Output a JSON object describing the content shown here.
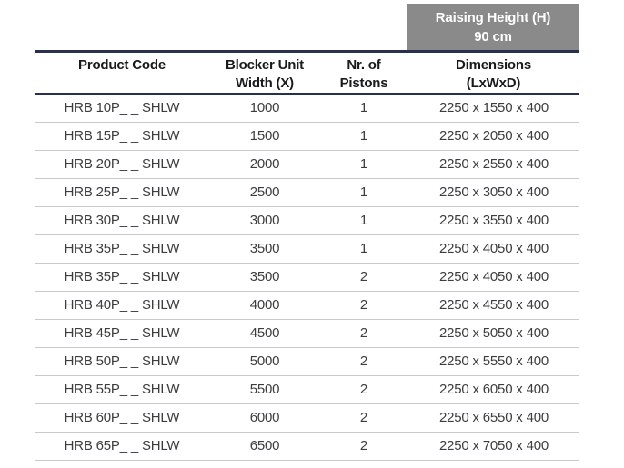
{
  "banner": {
    "line1": "Raising Height (H)",
    "line2": "90 cm"
  },
  "table": {
    "columns": [
      {
        "line1": "Product Code",
        "line2": ""
      },
      {
        "line1": "Blocker Unit",
        "line2": "Width (X)"
      },
      {
        "line1": "Nr. of",
        "line2": "Pistons"
      },
      {
        "line1": "Dimensions",
        "line2": "(LxWxD)"
      }
    ],
    "rows": [
      [
        "HRB 10P_ _ SHLW",
        "1000",
        "1",
        "2250 x 1550 x 400"
      ],
      [
        "HRB 15P_ _ SHLW",
        "1500",
        "1",
        "2250 x 2050 x 400"
      ],
      [
        "HRB 20P_ _ SHLW",
        "2000",
        "1",
        "2250 x 2550 x 400"
      ],
      [
        "HRB 25P_ _ SHLW",
        "2500",
        "1",
        "2250 x 3050 x 400"
      ],
      [
        "HRB 30P_ _ SHLW",
        "3000",
        "1",
        "2250 x 3550 x 400"
      ],
      [
        "HRB 35P_ _ SHLW",
        "3500",
        "1",
        "2250 x 4050 x 400"
      ],
      [
        "HRB 35P_ _ SHLW",
        "3500",
        "2",
        "2250 x 4050 x 400"
      ],
      [
        "HRB 40P_ _ SHLW",
        "4000",
        "2",
        "2250 x 4550 x 400"
      ],
      [
        "HRB 45P_ _ SHLW",
        "4500",
        "2",
        "2250 x 5050 x 400"
      ],
      [
        "HRB 50P_ _ SHLW",
        "5000",
        "2",
        "2250 x 5550 x 400"
      ],
      [
        "HRB 55P_ _ SHLW",
        "5500",
        "2",
        "2250 x 6050 x 400"
      ],
      [
        "HRB 60P_ _ SHLW",
        "6000",
        "2",
        "2250 x 6550 x 400"
      ],
      [
        "HRB 65P_ _ SHLW",
        "6500",
        "2",
        "2250 x 7050 x 400"
      ]
    ]
  },
  "colors": {
    "banner_gray": "#8a8a8a",
    "banner_text": "#ffffff",
    "header_rule_navy": "#28304f",
    "column_separator_navy": "#49527a",
    "row_divider_gray": "#c6c9cf",
    "header_text": "#1a1a1a",
    "data_text": "#3d3d3d",
    "background": "#ffffff"
  }
}
